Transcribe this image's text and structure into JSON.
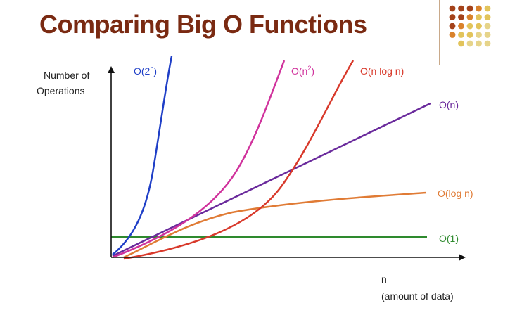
{
  "title": "Comparing Big O Functions",
  "dot_colors": {
    "dark": "#a4421a",
    "mid": "#d9822b",
    "light": "#e2c45b",
    "pale": "#e6d48a"
  },
  "axes": {
    "y_label_line1": "Number of",
    "y_label_line2": "Operations",
    "x_label_line1": "n",
    "x_label_line2": "(amount of data)",
    "color": "#111111"
  },
  "curves": [
    {
      "id": "exp",
      "label_base": "O(2",
      "label_sup": "n",
      "label_tail": ")",
      "color": "#1f3fc7"
    },
    {
      "id": "quad",
      "label_base": "O(n",
      "label_sup": "2",
      "label_tail": ")",
      "color": "#d0329c"
    },
    {
      "id": "nlogn",
      "label_base": "O(n log n)",
      "label_sup": "",
      "label_tail": "",
      "color": "#d8392b"
    },
    {
      "id": "linear",
      "label_base": "O(n)",
      "label_sup": "",
      "label_tail": "",
      "color": "#6a2a9c"
    },
    {
      "id": "log",
      "label_base": "O(log n)",
      "label_sup": "",
      "label_tail": "",
      "color": "#e07b35"
    },
    {
      "id": "const",
      "label_base": "O(1)",
      "label_sup": "",
      "label_tail": "",
      "color": "#2e8a2e"
    }
  ]
}
